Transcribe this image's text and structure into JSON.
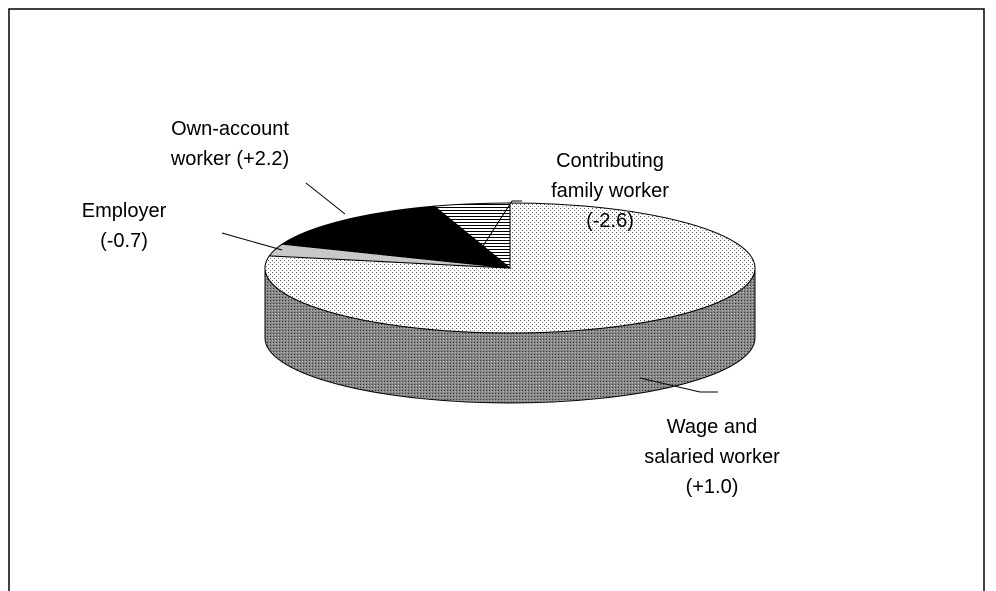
{
  "chart_data": {
    "type": "pie3d",
    "categories": [
      [
        "Wage and",
        "salaried worker",
        "(+1.0)"
      ],
      [
        "Employer",
        "(-0.7)"
      ],
      [
        "Own-account",
        "worker (+2.2)"
      ],
      [
        "Contributing",
        "family worker",
        "(-2.6)"
      ]
    ],
    "values": [
      78,
      3,
      14,
      5
    ]
  }
}
